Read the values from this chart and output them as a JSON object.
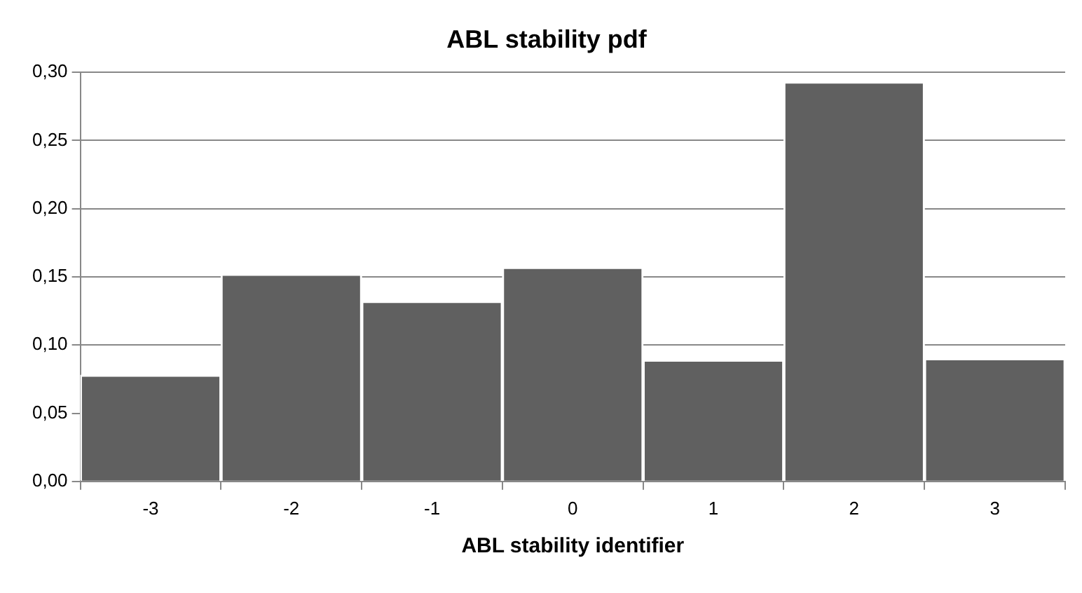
{
  "chart_data": {
    "type": "bar",
    "title": "ABL stability pdf",
    "xlabel": "ABL stability identifier",
    "categories": [
      "-3",
      "-2",
      "-1",
      "0",
      "1",
      "2",
      "3"
    ],
    "values": [
      0.078,
      0.152,
      0.132,
      0.157,
      0.089,
      0.293,
      0.09
    ],
    "color": "#606060",
    "ylim": [
      0,
      0.3
    ],
    "yticks": [
      {
        "value": 0,
        "label": "0,00"
      },
      {
        "value": 0.05,
        "label": "0,05"
      },
      {
        "value": 0.1,
        "label": "0,10"
      },
      {
        "value": 0.15,
        "label": "0,15"
      },
      {
        "value": 0.2,
        "label": "0,20"
      },
      {
        "value": 0.25,
        "label": "0,25"
      },
      {
        "value": 0.3,
        "label": "0,30"
      }
    ],
    "grid": "y",
    "legend": false
  }
}
